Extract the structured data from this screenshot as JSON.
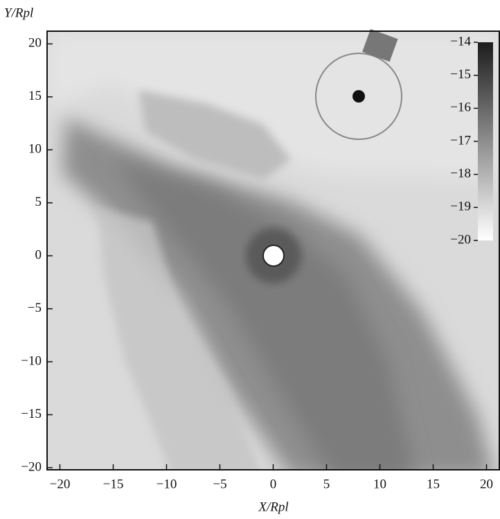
{
  "chart_data": {
    "type": "image",
    "xlabel": "X/Rpl",
    "ylabel": "Y/Rpl",
    "xlim": [
      -21.2,
      21.2
    ],
    "ylim": [
      -20.2,
      21.2
    ],
    "xticks": [
      {
        "value": -20,
        "label": "−20"
      },
      {
        "value": -15,
        "label": "−15"
      },
      {
        "value": -10,
        "label": "−10"
      },
      {
        "value": -5,
        "label": "−5"
      },
      0,
      5,
      10,
      15,
      20
    ],
    "yticks": [
      {
        "value": -20,
        "label": "−20"
      },
      {
        "value": -15,
        "label": "−15"
      },
      {
        "value": -10,
        "label": "−10"
      },
      {
        "value": -5,
        "label": "−5"
      },
      0,
      5,
      10,
      15,
      20
    ],
    "colorbar": {
      "lim": [
        -20,
        -14
      ],
      "colors": [
        "#ffffff",
        "#1c1c1c"
      ],
      "ticks": [
        {
          "value": -20,
          "label": "−20"
        },
        {
          "value": -19,
          "label": "−19"
        },
        {
          "value": -18,
          "label": "−18"
        },
        {
          "value": -17,
          "label": "−17"
        },
        {
          "value": -16,
          "label": "−16"
        },
        {
          "value": -15,
          "label": "−15"
        },
        {
          "value": -14,
          "label": "−14"
        }
      ]
    }
  }
}
